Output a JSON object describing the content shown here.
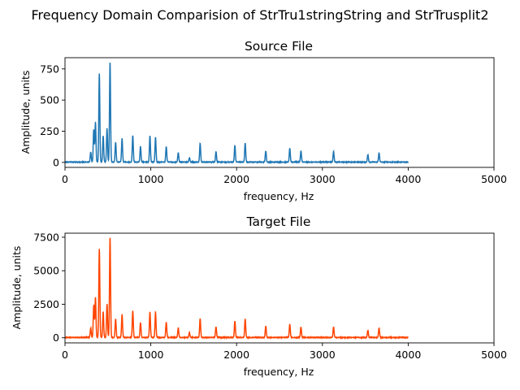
{
  "suptitle": "Frequency Domain Comparision of StrTru1stringString and StrTrusplit2",
  "chart_data": [
    {
      "type": "line",
      "title": "Source File",
      "xlabel": "frequency, Hz",
      "ylabel": "Amplitude, units",
      "xlim": [
        0,
        5000
      ],
      "ylim": [
        -40,
        840
      ],
      "xticks": [
        0,
        1000,
        2000,
        3000,
        4000,
        5000
      ],
      "yticks": [
        0,
        250,
        500,
        750
      ],
      "color": "#1f77b4",
      "grid": false,
      "freq_range": [
        0,
        4000
      ],
      "peaks": [
        {
          "x": 300,
          "y": 80
        },
        {
          "x": 335,
          "y": 260
        },
        {
          "x": 355,
          "y": 320
        },
        {
          "x": 400,
          "y": 710
        },
        {
          "x": 445,
          "y": 210
        },
        {
          "x": 490,
          "y": 270
        },
        {
          "x": 525,
          "y": 800
        },
        {
          "x": 590,
          "y": 160
        },
        {
          "x": 665,
          "y": 190
        },
        {
          "x": 790,
          "y": 215
        },
        {
          "x": 880,
          "y": 125
        },
        {
          "x": 990,
          "y": 210
        },
        {
          "x": 1055,
          "y": 200
        },
        {
          "x": 1180,
          "y": 125
        },
        {
          "x": 1320,
          "y": 75
        },
        {
          "x": 1450,
          "y": 35
        },
        {
          "x": 1575,
          "y": 150
        },
        {
          "x": 1760,
          "y": 85
        },
        {
          "x": 1980,
          "y": 135
        },
        {
          "x": 2100,
          "y": 155
        },
        {
          "x": 2340,
          "y": 90
        },
        {
          "x": 2620,
          "y": 110
        },
        {
          "x": 2750,
          "y": 90
        },
        {
          "x": 3130,
          "y": 85
        },
        {
          "x": 3530,
          "y": 60
        },
        {
          "x": 3660,
          "y": 75
        }
      ]
    },
    {
      "type": "line",
      "title": "Target File",
      "xlabel": "frequency, Hz",
      "ylabel": "Amplitude, units",
      "xlim": [
        0,
        5000
      ],
      "ylim": [
        -380,
        7800
      ],
      "xticks": [
        0,
        1000,
        2000,
        3000,
        4000,
        5000
      ],
      "yticks": [
        0,
        2500,
        5000,
        7500
      ],
      "color": "#ff4500",
      "grid": false,
      "freq_range": [
        0,
        4000
      ],
      "peaks": [
        {
          "x": 300,
          "y": 700
        },
        {
          "x": 335,
          "y": 2400
        },
        {
          "x": 355,
          "y": 3000
        },
        {
          "x": 400,
          "y": 6600
        },
        {
          "x": 445,
          "y": 1900
        },
        {
          "x": 490,
          "y": 2500
        },
        {
          "x": 525,
          "y": 7450
        },
        {
          "x": 590,
          "y": 1400
        },
        {
          "x": 665,
          "y": 1700
        },
        {
          "x": 790,
          "y": 2000
        },
        {
          "x": 880,
          "y": 1100
        },
        {
          "x": 990,
          "y": 1900
        },
        {
          "x": 1055,
          "y": 1850
        },
        {
          "x": 1180,
          "y": 1150
        },
        {
          "x": 1320,
          "y": 700
        },
        {
          "x": 1450,
          "y": 350
        },
        {
          "x": 1575,
          "y": 1400
        },
        {
          "x": 1760,
          "y": 800
        },
        {
          "x": 1980,
          "y": 1250
        },
        {
          "x": 2100,
          "y": 1400
        },
        {
          "x": 2340,
          "y": 850
        },
        {
          "x": 2620,
          "y": 1000
        },
        {
          "x": 2750,
          "y": 800
        },
        {
          "x": 3130,
          "y": 800
        },
        {
          "x": 3530,
          "y": 550
        },
        {
          "x": 3660,
          "y": 700
        }
      ]
    }
  ]
}
